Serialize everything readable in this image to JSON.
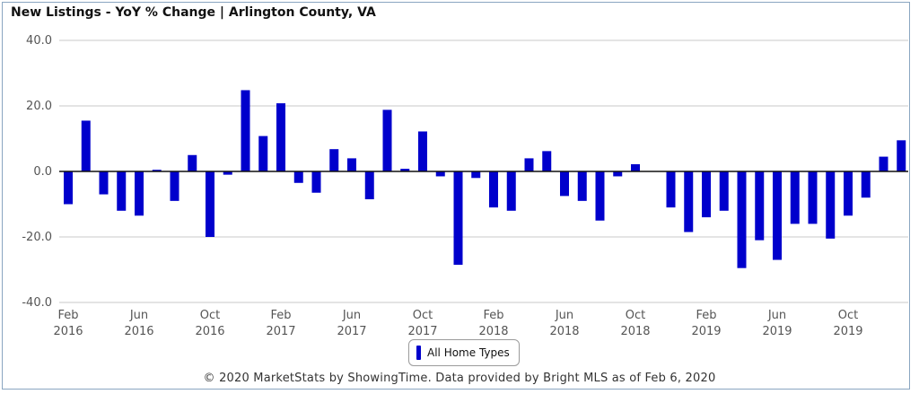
{
  "chart_data": {
    "type": "bar",
    "title": "New Listings - YoY % Change | Arlington County, VA",
    "xlabel": "",
    "ylabel": "",
    "ylim": [
      -40,
      40
    ],
    "yticks": [
      "40.0",
      "20.0",
      "0.0",
      "-20.0",
      "-40.0"
    ],
    "ytick_values": [
      40,
      20,
      0,
      -20,
      -40
    ],
    "grid": true,
    "legend_placement": "bottom-center",
    "x_tick_labels": [
      {
        "index": 0,
        "month": "Feb",
        "year": "2016"
      },
      {
        "index": 4,
        "month": "Jun",
        "year": "2016"
      },
      {
        "index": 8,
        "month": "Oct",
        "year": "2016"
      },
      {
        "index": 12,
        "month": "Feb",
        "year": "2017"
      },
      {
        "index": 16,
        "month": "Jun",
        "year": "2017"
      },
      {
        "index": 20,
        "month": "Oct",
        "year": "2017"
      },
      {
        "index": 24,
        "month": "Feb",
        "year": "2018"
      },
      {
        "index": 28,
        "month": "Jun",
        "year": "2018"
      },
      {
        "index": 32,
        "month": "Oct",
        "year": "2018"
      },
      {
        "index": 36,
        "month": "Feb",
        "year": "2019"
      },
      {
        "index": 40,
        "month": "Jun",
        "year": "2019"
      },
      {
        "index": 44,
        "month": "Oct",
        "year": "2019"
      }
    ],
    "categories": [
      "Feb 2016",
      "Mar 2016",
      "Apr 2016",
      "May 2016",
      "Jun 2016",
      "Jul 2016",
      "Aug 2016",
      "Sep 2016",
      "Oct 2016",
      "Nov 2016",
      "Dec 2016",
      "Jan 2017",
      "Feb 2017",
      "Mar 2017",
      "Apr 2017",
      "May 2017",
      "Jun 2017",
      "Jul 2017",
      "Aug 2017",
      "Sep 2017",
      "Oct 2017",
      "Nov 2017",
      "Dec 2017",
      "Jan 2018",
      "Feb 2018",
      "Mar 2018",
      "Apr 2018",
      "May 2018",
      "Jun 2018",
      "Jul 2018",
      "Aug 2018",
      "Sep 2018",
      "Oct 2018",
      "Nov 2018",
      "Dec 2018",
      "Jan 2019",
      "Feb 2019",
      "Mar 2019",
      "Apr 2019",
      "May 2019",
      "Jun 2019",
      "Jul 2019",
      "Aug 2019",
      "Sep 2019",
      "Oct 2019",
      "Nov 2019",
      "Dec 2019",
      "Jan 2020"
    ],
    "series": [
      {
        "name": "All Home Types",
        "color": "#0000cc",
        "values": [
          -10.0,
          15.5,
          -7.0,
          -12.0,
          -13.5,
          0.5,
          -9.0,
          5.0,
          -20.0,
          -1.0,
          24.8,
          10.8,
          20.8,
          -3.5,
          -6.5,
          6.8,
          4.0,
          -8.5,
          18.8,
          0.8,
          12.2,
          -1.5,
          -28.5,
          -2.0,
          -11.0,
          -12.0,
          4.0,
          6.2,
          -7.5,
          -9.0,
          -15.0,
          -1.5,
          2.2,
          0.0,
          -11.0,
          -18.5,
          -14.0,
          -12.0,
          -29.5,
          -21.0,
          -27.0,
          -16.0,
          -16.0,
          -20.5,
          -13.5,
          -8.0,
          4.5,
          9.5
        ]
      }
    ]
  },
  "credits": "© 2020 MarketStats by ShowingTime. Data provided by Bright MLS as of Feb 6, 2020"
}
